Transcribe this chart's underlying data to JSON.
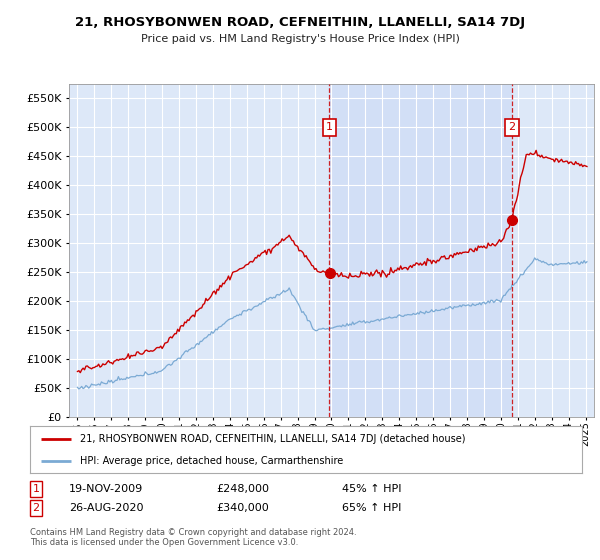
{
  "title": "21, RHOSYBONWEN ROAD, CEFNEITHIN, LLANELLI, SA14 7DJ",
  "subtitle": "Price paid vs. HM Land Registry's House Price Index (HPI)",
  "background_color": "#ffffff",
  "plot_bg_color": "#dde8f8",
  "shade_color": "#ccdaf5",
  "grid_color": "#ffffff",
  "red_line_color": "#cc0000",
  "blue_line_color": "#7baad4",
  "transaction1": {
    "date": "19-NOV-2009",
    "price": 248000,
    "hpi_pct": "45% ↑ HPI",
    "x_year": 2009.88
  },
  "transaction2": {
    "date": "26-AUG-2020",
    "price": 340000,
    "hpi_pct": "65% ↑ HPI",
    "x_year": 2020.65
  },
  "legend_label_red": "21, RHOSYBONWEN ROAD, CEFNEITHIN, LLANELLI, SA14 7DJ (detached house)",
  "legend_label_blue": "HPI: Average price, detached house, Carmarthenshire",
  "footnote": "Contains HM Land Registry data © Crown copyright and database right 2024.\nThis data is licensed under the Open Government Licence v3.0.",
  "ylim": [
    0,
    575000
  ],
  "yticks": [
    0,
    50000,
    100000,
    150000,
    200000,
    250000,
    300000,
    350000,
    400000,
    450000,
    500000,
    550000
  ],
  "xlim": [
    1994.5,
    2025.5
  ]
}
